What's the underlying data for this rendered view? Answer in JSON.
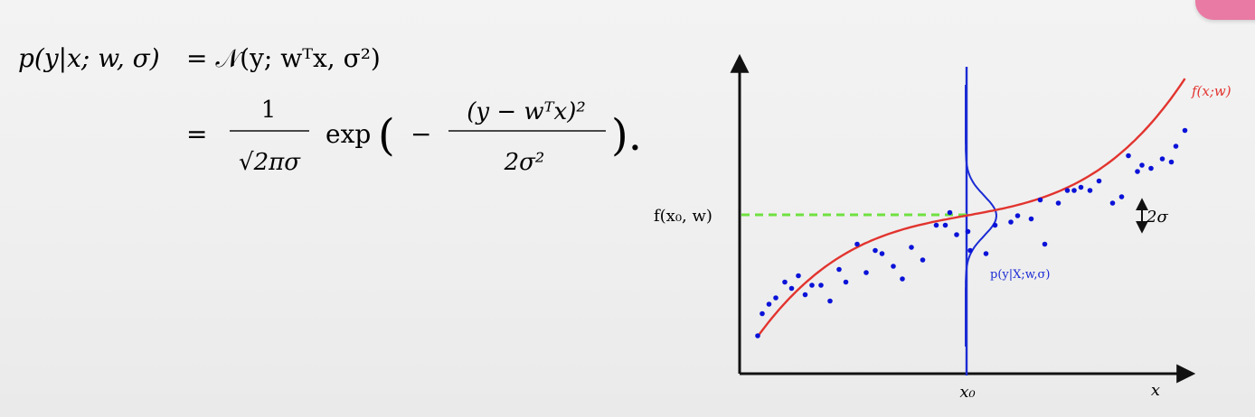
{
  "equation": {
    "line1": {
      "lhs": "p(y|x; w, σ)",
      "rhs": "= 𝒩(y; wᵀx, σ²)"
    },
    "line2": {
      "equals": "=",
      "frac1_num": "1",
      "frac1_den": "√2πσ",
      "exp": "exp",
      "open_paren": "(",
      "minus": "−",
      "frac2_num": "(y − wᵀx)²",
      "frac2_den": "2σ²",
      "close": ")."
    }
  },
  "chart_data": {
    "type": "scatter",
    "title": "",
    "xlabel": "x",
    "ylabel": "",
    "x_tick_label": "x₀",
    "xlim": [
      0,
      1
    ],
    "ylim": [
      0,
      1
    ],
    "x0": 0.5,
    "points": [
      [
        0.04,
        0.12
      ],
      [
        0.05,
        0.19
      ],
      [
        0.065,
        0.22
      ],
      [
        0.08,
        0.24
      ],
      [
        0.1,
        0.29
      ],
      [
        0.115,
        0.27
      ],
      [
        0.13,
        0.31
      ],
      [
        0.145,
        0.25
      ],
      [
        0.16,
        0.28
      ],
      [
        0.18,
        0.28
      ],
      [
        0.2,
        0.23
      ],
      [
        0.22,
        0.33
      ],
      [
        0.235,
        0.29
      ],
      [
        0.26,
        0.41
      ],
      [
        0.28,
        0.32
      ],
      [
        0.3,
        0.39
      ],
      [
        0.315,
        0.38
      ],
      [
        0.34,
        0.34
      ],
      [
        0.36,
        0.3
      ],
      [
        0.38,
        0.4
      ],
      [
        0.405,
        0.36
      ],
      [
        0.435,
        0.47
      ],
      [
        0.455,
        0.47
      ],
      [
        0.465,
        0.51
      ],
      [
        0.48,
        0.44
      ],
      [
        0.505,
        0.45
      ],
      [
        0.51,
        0.39
      ],
      [
        0.545,
        0.38
      ],
      [
        0.565,
        0.47
      ],
      [
        0.6,
        0.48
      ],
      [
        0.615,
        0.5
      ],
      [
        0.645,
        0.49
      ],
      [
        0.665,
        0.55
      ],
      [
        0.675,
        0.41
      ],
      [
        0.705,
        0.54
      ],
      [
        0.725,
        0.58
      ],
      [
        0.74,
        0.58
      ],
      [
        0.755,
        0.59
      ],
      [
        0.775,
        0.58
      ],
      [
        0.795,
        0.61
      ],
      [
        0.825,
        0.54
      ],
      [
        0.845,
        0.56
      ],
      [
        0.86,
        0.69
      ],
      [
        0.88,
        0.64
      ],
      [
        0.89,
        0.66
      ],
      [
        0.91,
        0.65
      ],
      [
        0.935,
        0.68
      ],
      [
        0.955,
        0.67
      ],
      [
        0.965,
        0.72
      ],
      [
        0.985,
        0.77
      ]
    ],
    "curve_label": "f(x;w)",
    "point_label": "f(x₀, w)",
    "gaussian_label": "p(y|X;w,σ)",
    "sigma_label": "2σ",
    "colors": {
      "curve": "#e2342f",
      "points": "#0a12d8",
      "gaussian": "#1b2bd4",
      "dashed": "#6fe03f",
      "axes": "#111111"
    }
  }
}
